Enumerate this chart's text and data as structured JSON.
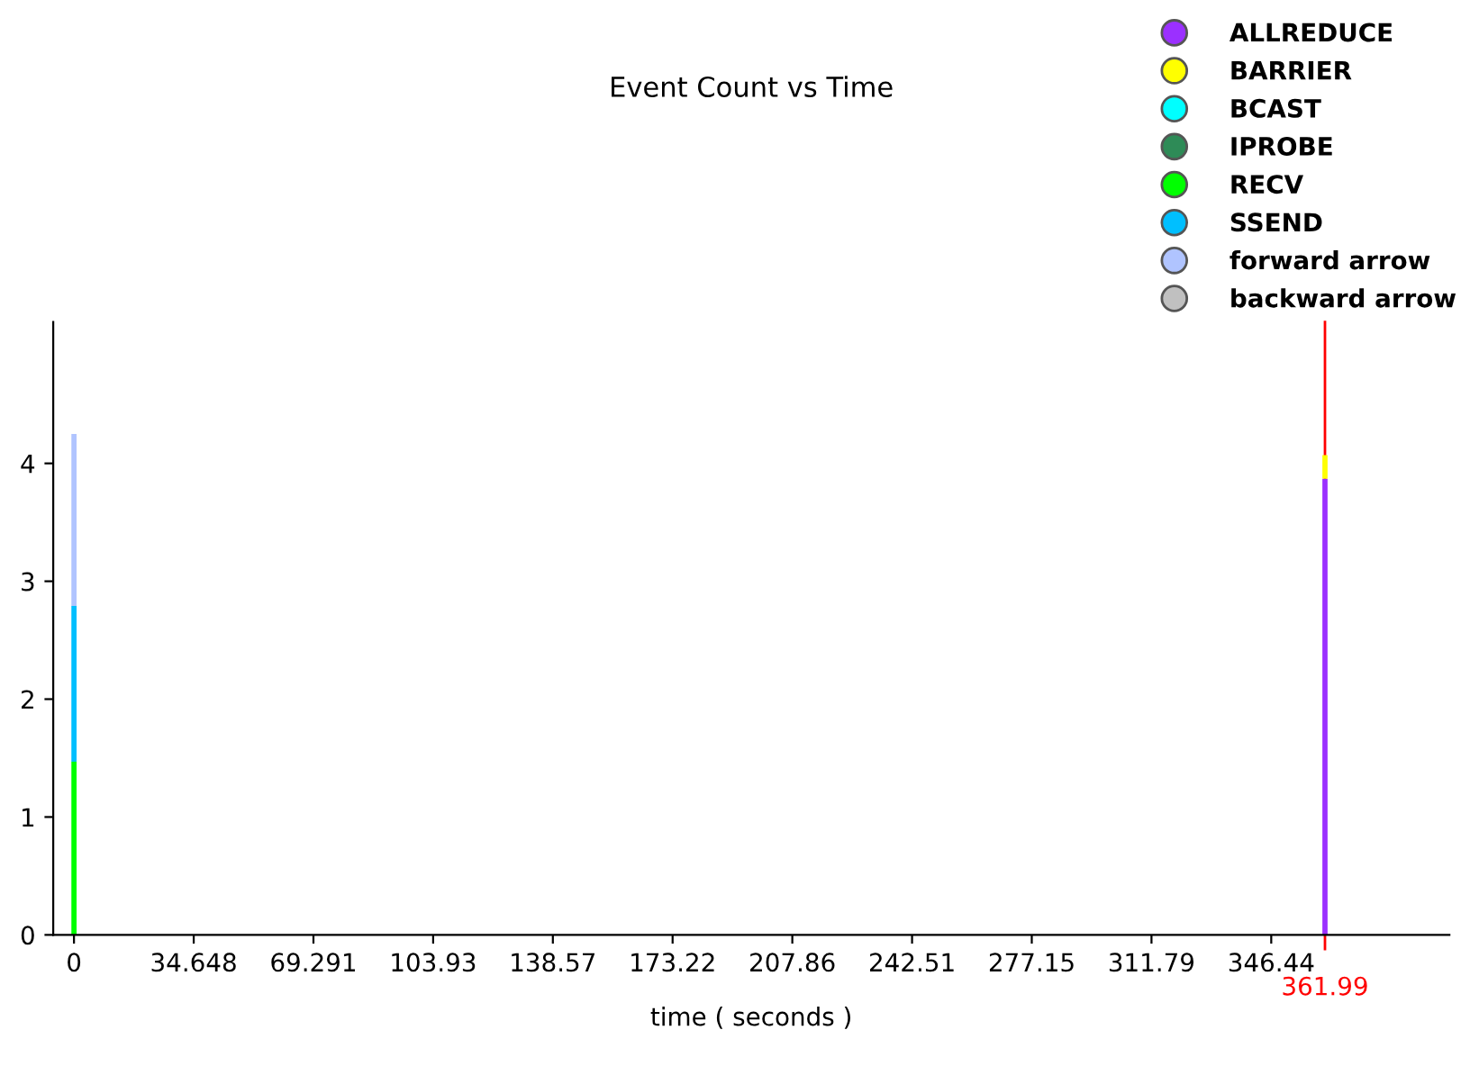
{
  "chart_data": {
    "type": "bar",
    "stacked": true,
    "title": "Event Count vs Time",
    "xlabel": "time ( seconds )",
    "x": [
      0,
      361.99
    ],
    "series": [
      {
        "name": "ALLREDUCE",
        "color": "#9b30ff",
        "values": [
          null,
          3.87
        ]
      },
      {
        "name": "BARRIER",
        "color": "#ffff00",
        "values": [
          null,
          0.2
        ]
      },
      {
        "name": "BCAST",
        "color": "#00ffff",
        "values": [
          null,
          null
        ]
      },
      {
        "name": "IPROBE",
        "color": "#2e8b57",
        "values": [
          null,
          null
        ]
      },
      {
        "name": "RECV",
        "color": "#00ff00",
        "values": [
          1.47,
          null
        ]
      },
      {
        "name": "SSEND",
        "color": "#00bfff",
        "values": [
          1.32,
          null
        ]
      },
      {
        "name": "forward arrow",
        "color": "#b0c4ff",
        "values": [
          1.46,
          null
        ]
      },
      {
        "name": "backward arrow",
        "color": "#c0c0c0",
        "values": [
          null,
          null
        ]
      }
    ],
    "xlim": [
      -6,
      398
    ],
    "ylim": [
      0,
      5.2
    ],
    "xticks": [
      0,
      34.648,
      69.291,
      103.93,
      138.57,
      173.22,
      207.86,
      242.51,
      277.15,
      311.79,
      346.44
    ],
    "yticks": [
      0,
      1,
      2,
      3,
      4
    ],
    "ref_lines": [
      {
        "axis": "x",
        "value": 361.99,
        "label": "361.99",
        "color": "#ff0000"
      }
    ],
    "grid": false,
    "legend": "top right"
  }
}
